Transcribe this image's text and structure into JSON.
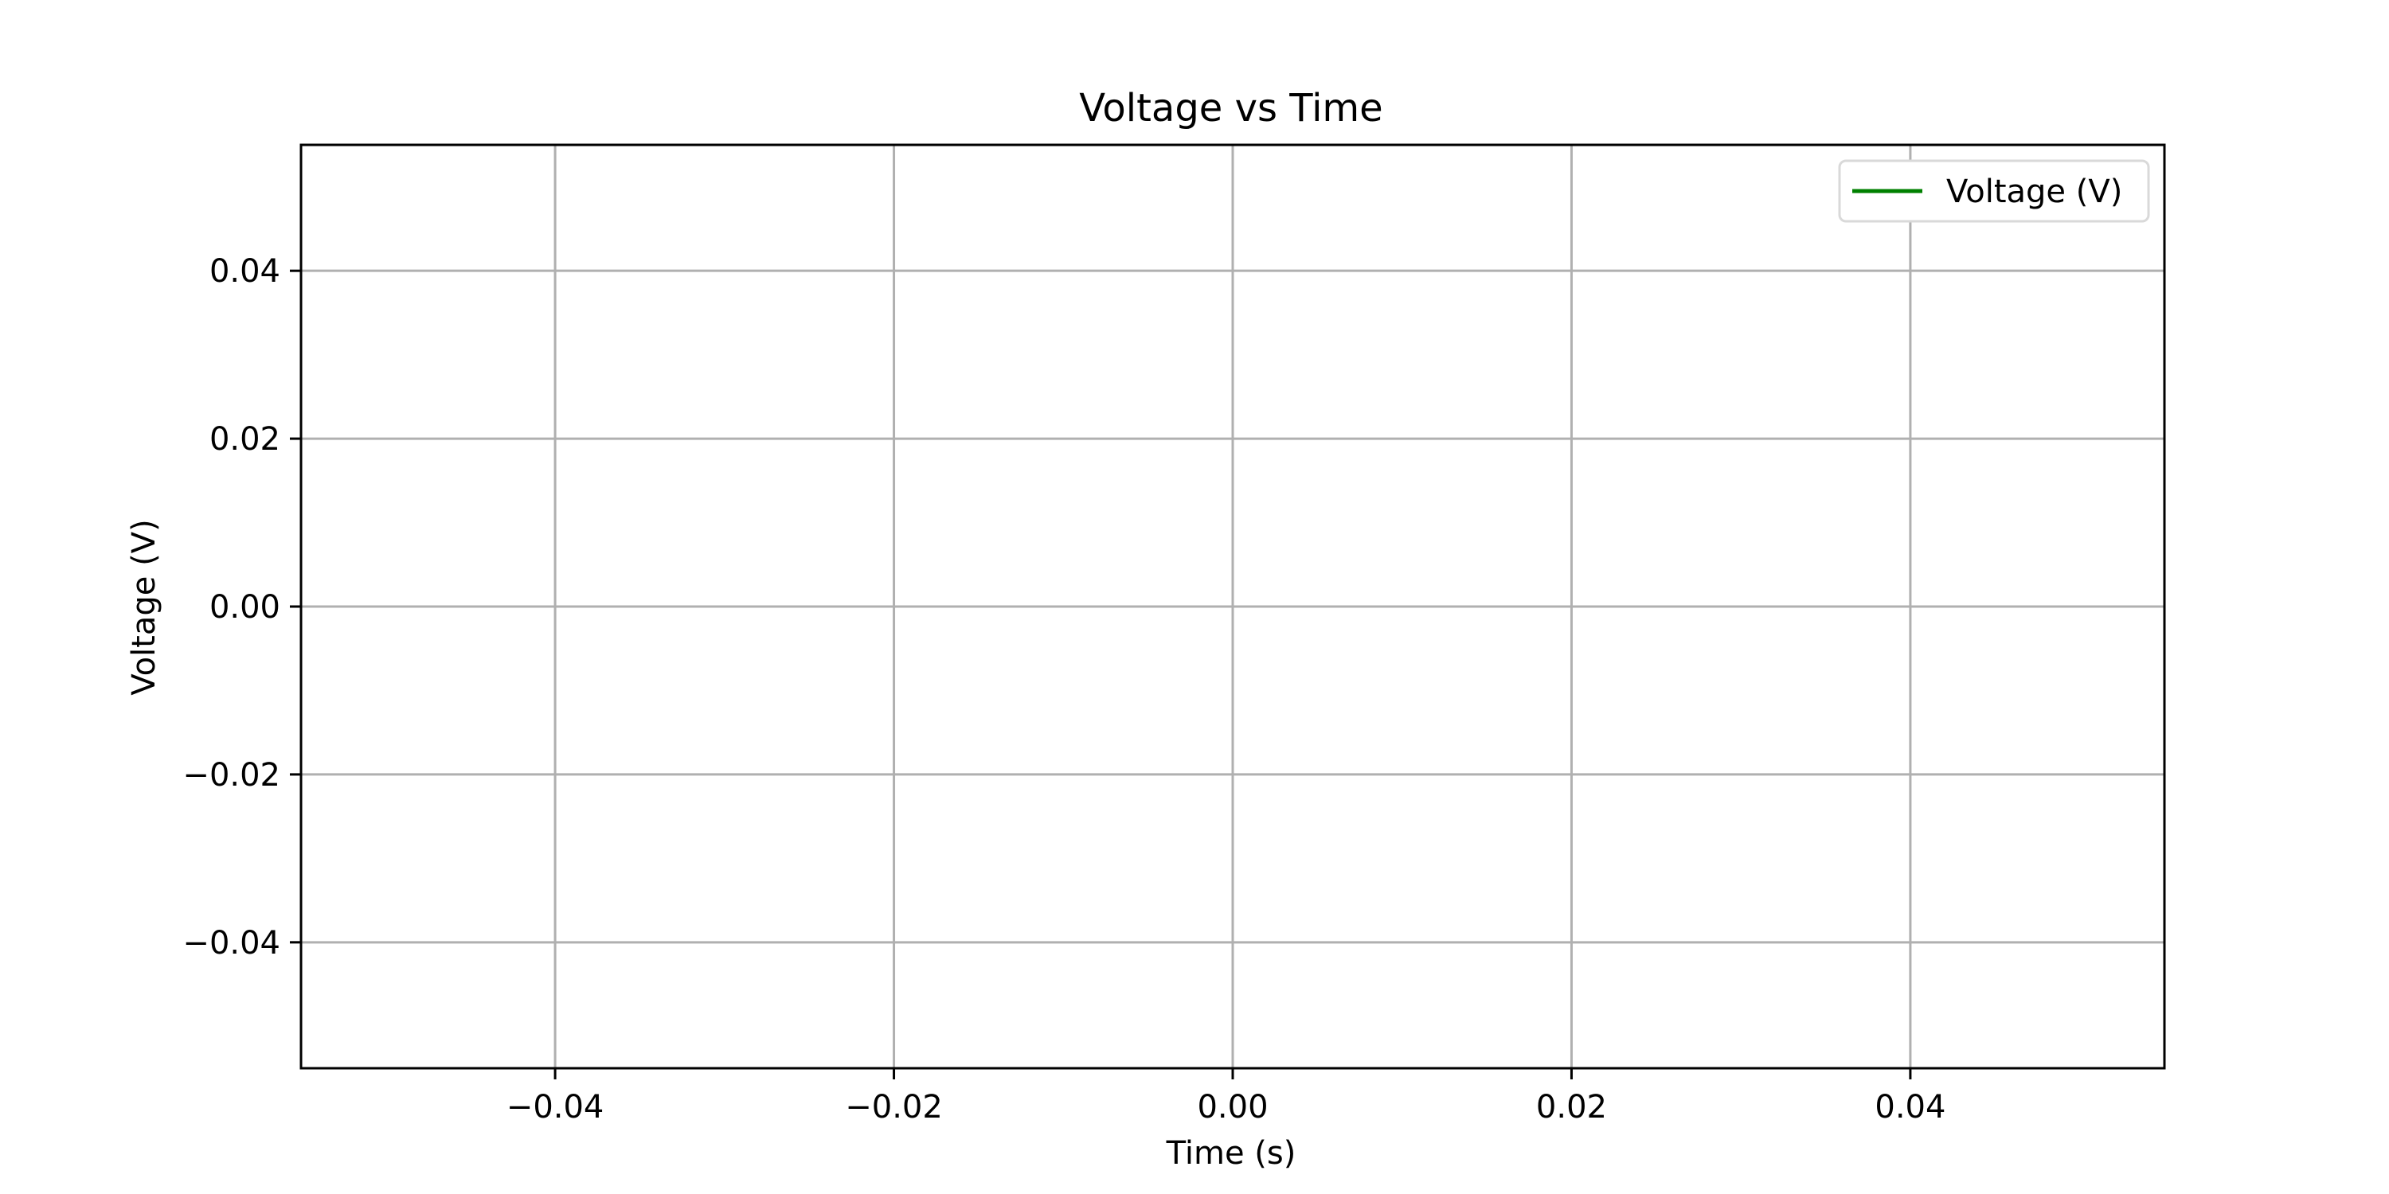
{
  "chart_data": {
    "type": "line",
    "title": "Voltage vs Time",
    "xlabel": "Time (s)",
    "ylabel": "Voltage (V)",
    "xlim": [
      -0.055,
      0.055
    ],
    "ylim": [
      -0.055,
      0.055
    ],
    "x_ticks": [
      -0.04,
      -0.02,
      0.0,
      0.02,
      0.04
    ],
    "x_tick_labels": [
      "−0.04",
      "−0.02",
      "0.00",
      "0.02",
      "0.04"
    ],
    "y_ticks": [
      0.04,
      0.02,
      0.0,
      -0.02,
      -0.04
    ],
    "y_tick_labels": [
      "0.04",
      "0.02",
      "0.00",
      "−0.02",
      "−0.04"
    ],
    "grid": true,
    "legend_position": "top-right",
    "series": [
      {
        "name": "Voltage (V)",
        "color": "#008000",
        "x": [],
        "y": []
      }
    ]
  }
}
